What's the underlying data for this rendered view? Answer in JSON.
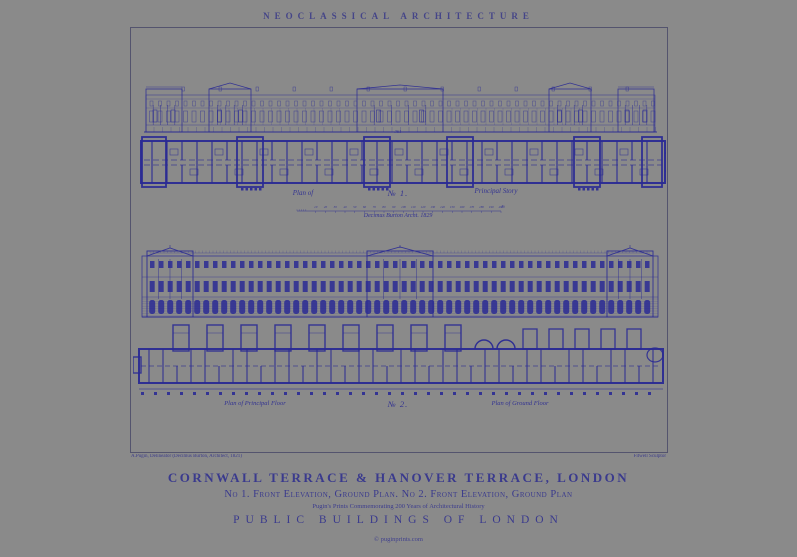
{
  "poster": {
    "header": "NEOCLASSICAL ARCHITECTURE",
    "bg_color": "#8a8a8a",
    "ink_color": "#2a2a94",
    "plate1": {
      "number": "№ 1.",
      "caption_left": "Plan of",
      "caption_right": "Principal Story",
      "dimension": "361",
      "scale_ticks": [
        "10",
        "20",
        "30",
        "40",
        "50",
        "60",
        "70",
        "80",
        "90",
        "100",
        "110",
        "120",
        "130",
        "140",
        "150",
        "160",
        "170",
        "180",
        "190",
        "200"
      ],
      "scale_unit": "Ft",
      "scale_credit": "Decimus Burton Archt. 1829"
    },
    "plate2": {
      "number": "№ 2.",
      "caption_left": "Plan of Principal Floor",
      "caption_right": "Plan of Ground Floor"
    },
    "credit_left": "A.Pugin, Delineator (Decimus Burton, Architect, 1821)",
    "credit_right": "Fitwell Sculptor",
    "title": "CORNWALL TERRACE & HANOVER TERRACE, LONDON",
    "subtitle": "No 1. Front Elevation, Ground Plan. No 2. Front Elevation, Ground Plan",
    "series_note": "Pugin's Prints Commemorating 200 Years of Architectural History",
    "series_title": "PUBLIC BUILDINGS OF LONDON",
    "copyright": "© puginprints.com"
  }
}
